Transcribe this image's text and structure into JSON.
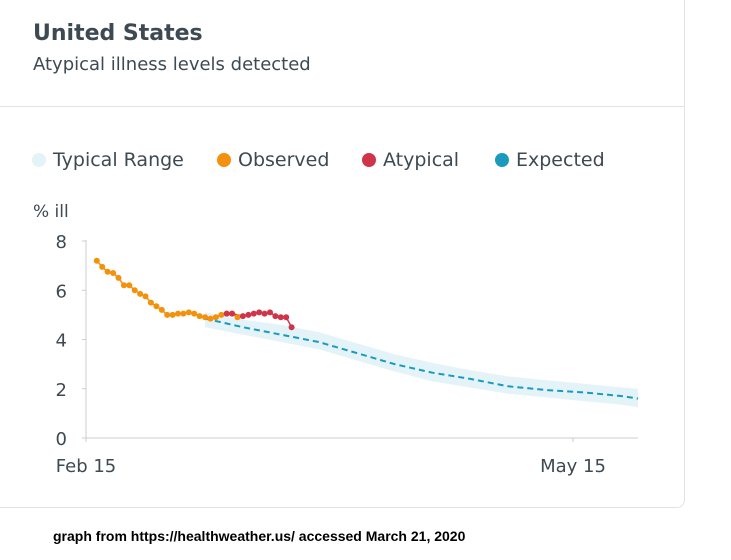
{
  "card": {
    "title": "United States",
    "subtitle": "Atypical illness levels detected"
  },
  "legend": [
    {
      "label": "Typical Range",
      "color": "#e3f3f8"
    },
    {
      "label": "Observed",
      "color": "#f4900c"
    },
    {
      "label": "Atypical",
      "color": "#d0344b"
    },
    {
      "label": "Expected",
      "color": "#1a9bbd"
    }
  ],
  "caption": "graph from https://healthweather.us/ accessed March 21, 2020",
  "chart_data": {
    "type": "line",
    "title": "United States",
    "subtitle": "Atypical illness levels detected",
    "ylabel": "% ill",
    "xlabel": "",
    "ylim": [
      0,
      8
    ],
    "yticks": [
      0,
      2,
      4,
      6,
      8
    ],
    "xlim": [
      "2020-02-15",
      "2020-05-27"
    ],
    "xticks": [
      {
        "value": "2020-02-15",
        "label": "Feb 15"
      },
      {
        "value": "2020-05-15",
        "label": "May 15"
      }
    ],
    "grid": false,
    "legend_position": "top",
    "typical_range": {
      "name": "Typical Range",
      "color": "#e3f3f8",
      "points": [
        {
          "x": "2020-03-08",
          "lo": 4.5,
          "hi": 5.1
        },
        {
          "x": "2020-03-15",
          "lo": 4.2,
          "hi": 4.8
        },
        {
          "x": "2020-03-22",
          "lo": 3.9,
          "hi": 4.6
        },
        {
          "x": "2020-03-29",
          "lo": 3.6,
          "hi": 4.3
        },
        {
          "x": "2020-04-05",
          "lo": 3.15,
          "hi": 3.85
        },
        {
          "x": "2020-04-12",
          "lo": 2.7,
          "hi": 3.4
        },
        {
          "x": "2020-04-19",
          "lo": 2.3,
          "hi": 3.05
        },
        {
          "x": "2020-04-26",
          "lo": 2.05,
          "hi": 2.75
        },
        {
          "x": "2020-05-03",
          "lo": 1.8,
          "hi": 2.5
        },
        {
          "x": "2020-05-10",
          "lo": 1.65,
          "hi": 2.35
        },
        {
          "x": "2020-05-17",
          "lo": 1.5,
          "hi": 2.2
        },
        {
          "x": "2020-05-24",
          "lo": 1.35,
          "hi": 2.05
        },
        {
          "x": "2020-05-27",
          "lo": 1.25,
          "hi": 2.0
        }
      ]
    },
    "series": [
      {
        "name": "Expected",
        "color": "#1a9bbd",
        "style": "dashed",
        "points": [
          {
            "x": "2020-03-08",
            "y": 4.85
          },
          {
            "x": "2020-03-15",
            "y": 4.5
          },
          {
            "x": "2020-03-22",
            "y": 4.2
          },
          {
            "x": "2020-03-29",
            "y": 3.9
          },
          {
            "x": "2020-04-05",
            "y": 3.45
          },
          {
            "x": "2020-04-12",
            "y": 3.0
          },
          {
            "x": "2020-04-19",
            "y": 2.65
          },
          {
            "x": "2020-04-26",
            "y": 2.4
          },
          {
            "x": "2020-05-03",
            "y": 2.1
          },
          {
            "x": "2020-05-10",
            "y": 1.95
          },
          {
            "x": "2020-05-17",
            "y": 1.85
          },
          {
            "x": "2020-05-24",
            "y": 1.7
          },
          {
            "x": "2020-05-27",
            "y": 1.6
          }
        ]
      },
      {
        "name": "Observed",
        "color": "#f4900c",
        "style": "dotted-line",
        "points": [
          {
            "x": "2020-02-17",
            "y": 7.2
          },
          {
            "x": "2020-02-18",
            "y": 6.95
          },
          {
            "x": "2020-02-19",
            "y": 6.75
          },
          {
            "x": "2020-02-20",
            "y": 6.7
          },
          {
            "x": "2020-02-21",
            "y": 6.5
          },
          {
            "x": "2020-02-22",
            "y": 6.2
          },
          {
            "x": "2020-02-23",
            "y": 6.2
          },
          {
            "x": "2020-02-24",
            "y": 6.0
          },
          {
            "x": "2020-02-25",
            "y": 5.85
          },
          {
            "x": "2020-02-26",
            "y": 5.75
          },
          {
            "x": "2020-02-27",
            "y": 5.5
          },
          {
            "x": "2020-02-28",
            "y": 5.35
          },
          {
            "x": "2020-02-29",
            "y": 5.2
          },
          {
            "x": "2020-03-01",
            "y": 5.0
          },
          {
            "x": "2020-03-02",
            "y": 5.0
          },
          {
            "x": "2020-03-03",
            "y": 5.05
          },
          {
            "x": "2020-03-04",
            "y": 5.05
          },
          {
            "x": "2020-03-05",
            "y": 5.1
          },
          {
            "x": "2020-03-06",
            "y": 5.05
          },
          {
            "x": "2020-03-07",
            "y": 4.95
          },
          {
            "x": "2020-03-08",
            "y": 4.9
          },
          {
            "x": "2020-03-09",
            "y": 4.85
          },
          {
            "x": "2020-03-10",
            "y": 4.9
          },
          {
            "x": "2020-03-11",
            "y": 5.0
          },
          {
            "x": "2020-03-12",
            "y": 5.05
          },
          {
            "x": "2020-03-13",
            "y": 5.05
          },
          {
            "x": "2020-03-14",
            "y": 4.9
          }
        ]
      },
      {
        "name": "Atypical",
        "color": "#d0344b",
        "style": "dotted-line",
        "points": [
          {
            "x": "2020-03-12",
            "y": 5.05
          },
          {
            "x": "2020-03-13",
            "y": 5.05
          },
          {
            "x": "2020-03-15",
            "y": 4.95
          },
          {
            "x": "2020-03-16",
            "y": 5.0
          },
          {
            "x": "2020-03-17",
            "y": 5.05
          },
          {
            "x": "2020-03-18",
            "y": 5.1
          },
          {
            "x": "2020-03-19",
            "y": 5.05
          },
          {
            "x": "2020-03-20",
            "y": 5.1
          },
          {
            "x": "2020-03-21",
            "y": 4.95
          },
          {
            "x": "2020-03-22",
            "y": 4.9
          },
          {
            "x": "2020-03-23",
            "y": 4.9
          },
          {
            "x": "2020-03-24",
            "y": 4.5
          }
        ]
      }
    ]
  }
}
